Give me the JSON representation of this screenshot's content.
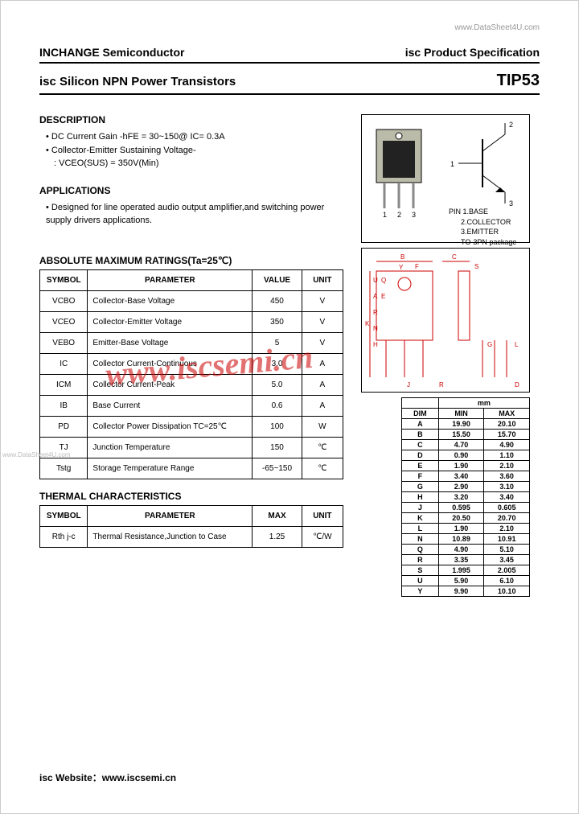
{
  "top_url": "www.DataSheet4U.com",
  "header": {
    "left": "INCHANGE Semiconductor",
    "right": "isc Product Specification"
  },
  "title": {
    "left": "isc Silicon NPN Power Transistors",
    "right": "TIP53"
  },
  "description": {
    "heading": "DESCRIPTION",
    "lines": [
      "DC Current Gain -hFE = 30~150@ IC= 0.3A",
      "Collector-Emitter Sustaining Voltage-"
    ],
    "sub": ": VCEO(SUS) = 350V(Min)"
  },
  "applications": {
    "heading": "APPLICATIONS",
    "text": "Designed for line operated audio output amplifier,and switching power supply drivers applications."
  },
  "ratings": {
    "heading": "ABSOLUTE MAXIMUM RATINGS(Ta=25℃)",
    "columns": [
      "SYMBOL",
      "PARAMETER",
      "VALUE",
      "UNIT"
    ],
    "rows": [
      [
        "VCBO",
        "Collector-Base Voltage",
        "450",
        "V"
      ],
      [
        "VCEO",
        "Collector-Emitter Voltage",
        "350",
        "V"
      ],
      [
        "VEBO",
        "Emitter-Base Voltage",
        "5",
        "V"
      ],
      [
        "IC",
        "Collector Current-Continuous",
        "3.0",
        "A"
      ],
      [
        "ICM",
        "Collector Current-Peak",
        "5.0",
        "A"
      ],
      [
        "IB",
        "Base Current",
        "0.6",
        "A"
      ],
      [
        "PD",
        "Collector Power Dissipation TC=25℃",
        "100",
        "W"
      ],
      [
        "TJ",
        "Junction Temperature",
        "150",
        "℃"
      ],
      [
        "Tstg",
        "Storage Temperature Range",
        "-65~150",
        "℃"
      ]
    ]
  },
  "thermal": {
    "heading": "THERMAL CHARACTERISTICS",
    "columns": [
      "SYMBOL",
      "PARAMETER",
      "MAX",
      "UNIT"
    ],
    "rows": [
      [
        "Rth j-c",
        "Thermal Resistance,Junction to Case",
        "1.25",
        "℃/W"
      ]
    ]
  },
  "package": {
    "labels": {
      "pin1": "1",
      "pin2": "2",
      "pin3": "3",
      "num1": "1",
      "num2": "2",
      "num3": "3"
    },
    "pins_heading": "PIN",
    "pins": [
      "1.BASE",
      "2.COLLECTOR",
      "3.EMITTER"
    ],
    "pkg_type": "TO-3PN package"
  },
  "mech_labels": [
    "B",
    "C",
    "F",
    "S",
    "Y",
    "U",
    "Q",
    "A",
    "E",
    "R",
    "N",
    "H",
    "K",
    "G",
    "L",
    "J",
    "D"
  ],
  "dimensions": {
    "header": [
      "DIM",
      "MIN",
      "MAX"
    ],
    "unit_header": "mm",
    "rows": [
      [
        "A",
        "19.90",
        "20.10"
      ],
      [
        "B",
        "15.50",
        "15.70"
      ],
      [
        "C",
        "4.70",
        "4.90"
      ],
      [
        "D",
        "0.90",
        "1.10"
      ],
      [
        "E",
        "1.90",
        "2.10"
      ],
      [
        "F",
        "3.40",
        "3.60"
      ],
      [
        "G",
        "2.90",
        "3.10"
      ],
      [
        "H",
        "3.20",
        "3.40"
      ],
      [
        "J",
        "0.595",
        "0.605"
      ],
      [
        "K",
        "20.50",
        "20.70"
      ],
      [
        "L",
        "1.90",
        "2.10"
      ],
      [
        "N",
        "10.89",
        "10.91"
      ],
      [
        "Q",
        "4.90",
        "5.10"
      ],
      [
        "R",
        "3.35",
        "3.45"
      ],
      [
        "S",
        "1.995",
        "2.005"
      ],
      [
        "U",
        "5.90",
        "6.10"
      ],
      [
        "Y",
        "9.90",
        "10.10"
      ]
    ]
  },
  "watermark": "www.iscsemi.cn",
  "side_watermark": "www.DataSheet4U.com",
  "footer": "isc Website：www.iscsemi.cn"
}
